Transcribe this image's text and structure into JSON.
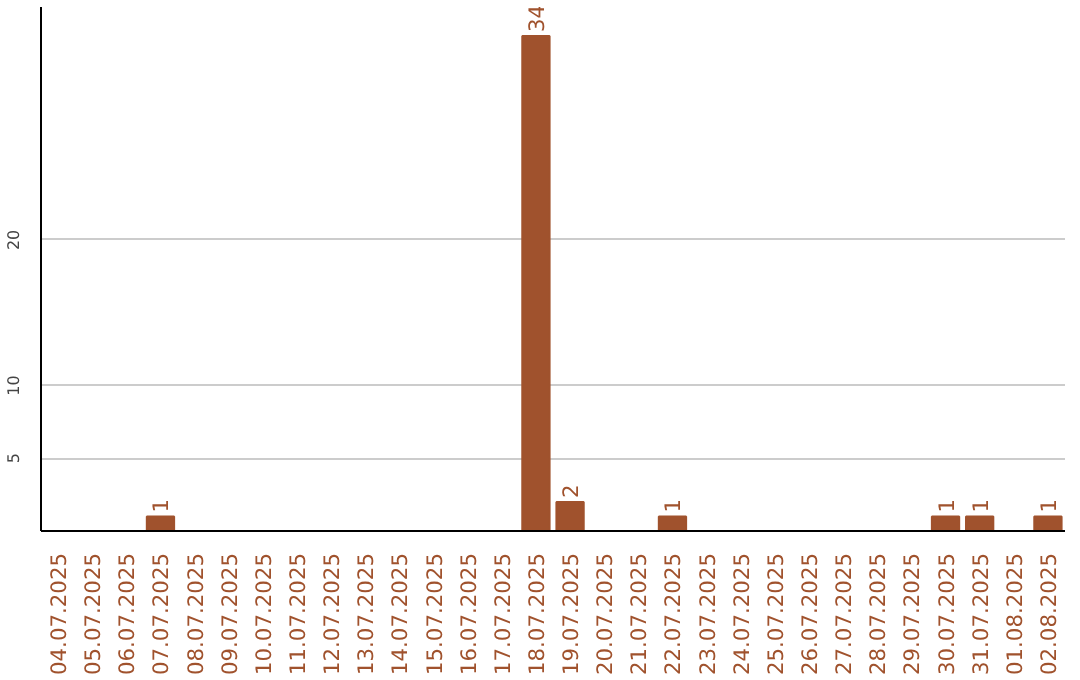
{
  "chart_data": {
    "type": "bar",
    "categories": [
      "04.07.2025",
      "05.07.2025",
      "06.07.2025",
      "07.07.2025",
      "08.07.2025",
      "09.07.2025",
      "10.07.2025",
      "11.07.2025",
      "12.07.2025",
      "13.07.2025",
      "14.07.2025",
      "15.07.2025",
      "16.07.2025",
      "17.07.2025",
      "18.07.2025",
      "19.07.2025",
      "20.07.2025",
      "21.07.2025",
      "22.07.2025",
      "23.07.2025",
      "24.07.2025",
      "25.07.2025",
      "26.07.2025",
      "27.07.2025",
      "28.07.2025",
      "29.07.2025",
      "30.07.2025",
      "31.07.2025",
      "01.08.2025",
      "02.08.2025"
    ],
    "values": [
      0,
      0,
      0,
      1,
      0,
      0,
      0,
      0,
      0,
      0,
      0,
      0,
      0,
      0,
      34,
      2,
      0,
      0,
      1,
      0,
      0,
      0,
      0,
      0,
      0,
      0,
      1,
      1,
      0,
      1
    ],
    "value_labels": [
      null,
      null,
      null,
      "1",
      null,
      null,
      null,
      null,
      null,
      null,
      null,
      null,
      null,
      null,
      "34",
      "2",
      null,
      null,
      "1",
      null,
      null,
      null,
      null,
      null,
      null,
      null,
      "1",
      "1",
      null,
      "1"
    ],
    "color": "#a0522d",
    "ylim": [
      0,
      36
    ],
    "yticks": [
      5,
      10,
      20
    ],
    "grid": "y"
  }
}
